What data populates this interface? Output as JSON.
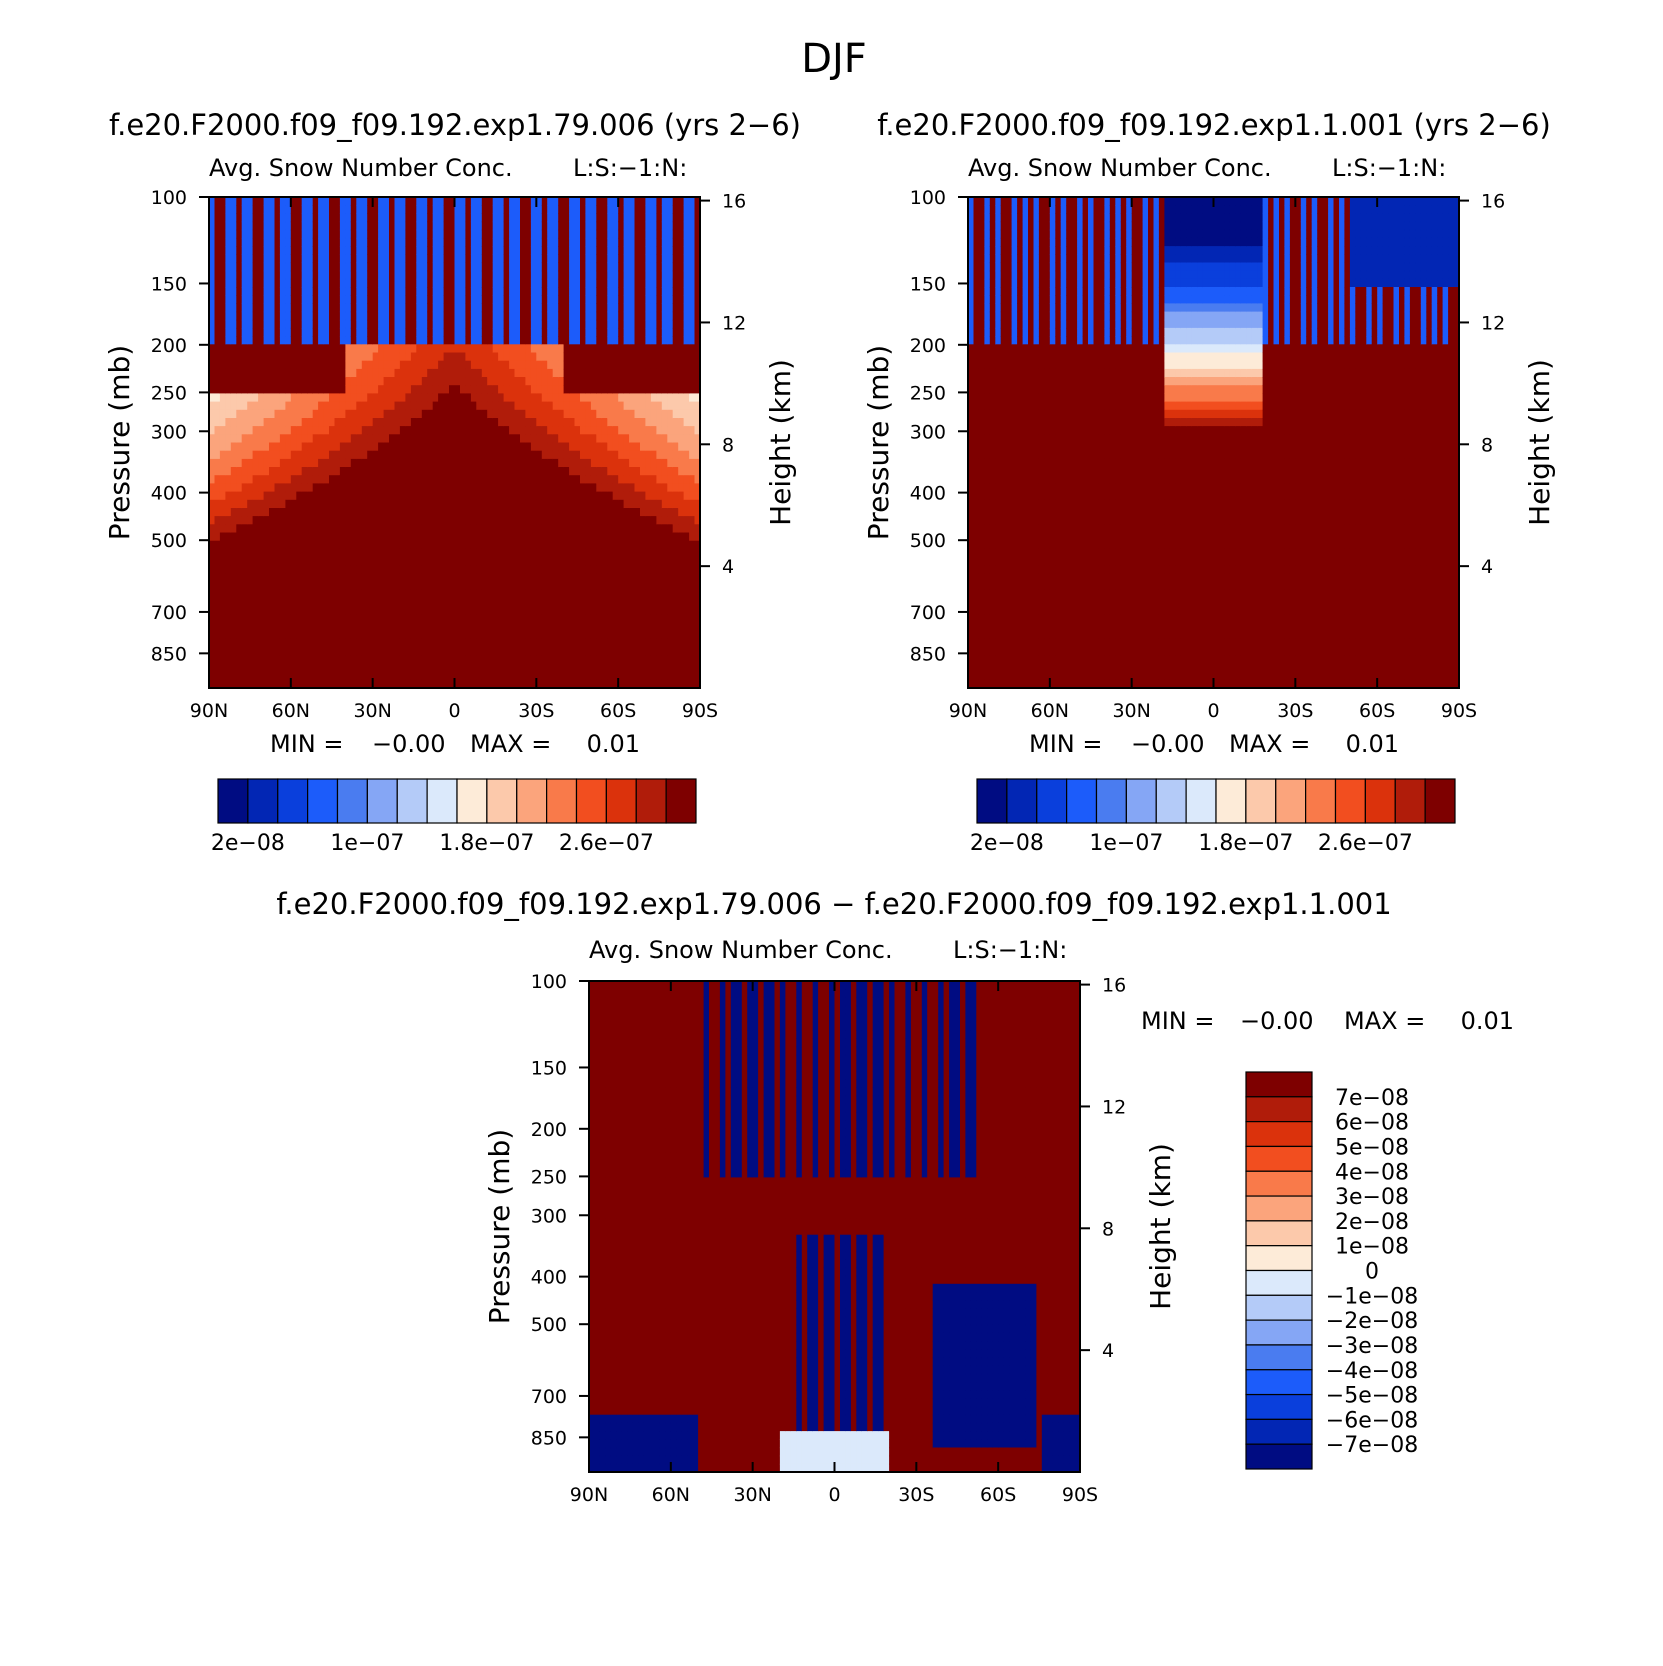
{
  "figure": {
    "title": "DJF"
  },
  "chart_data": [
    {
      "type": "heatmap",
      "case_title": "f.e20.F2000.f09_f09.192.exp1.79.006 (yrs 2−6)",
      "variable_title": "Avg. Snow Number Conc.",
      "level_note": "L:S:−1:N:",
      "ylabel": "Pressure (mb)",
      "ylabel_right": "Height (km)",
      "x_ticks": [
        "90N",
        "60N",
        "30N",
        "0",
        "30S",
        "60S",
        "90S"
      ],
      "y_ticks": [
        "100",
        "150",
        "200",
        "250",
        "300",
        "400",
        "500",
        "700",
        "850"
      ],
      "y_ticks_right": [
        "16",
        "12",
        "8",
        "4"
      ],
      "x_range": [
        90,
        -90
      ],
      "y_range_mb": [
        100,
        1000
      ],
      "y_scale": "log",
      "stats_min_label": "MIN =",
      "stats_min": "−0.00",
      "stats_max_label": "MAX =",
      "stats_max": "0.01",
      "colorbar": {
        "orientation": "horizontal",
        "colors": [
          "#000c82",
          "#0226b4",
          "#0a3fdc",
          "#1c5cfa",
          "#4a7cf0",
          "#85a6f5",
          "#b4cbf8",
          "#dbe9fb",
          "#fdebd8",
          "#fcc9ab",
          "#fba47c",
          "#f97a4a",
          "#f24e1f",
          "#db320c",
          "#b01c0a",
          "#7e0000"
        ],
        "labels": [
          "2e−08",
          "1e−07",
          "1.8e−07",
          "2.6e−07"
        ]
      }
    },
    {
      "type": "heatmap",
      "case_title": "f.e20.F2000.f09_f09.192.exp1.1.001 (yrs 2−6)",
      "variable_title": "Avg. Snow Number Conc.",
      "level_note": "L:S:−1:N:",
      "ylabel": "Pressure (mb)",
      "ylabel_right": "Height (km)",
      "x_ticks": [
        "90N",
        "60N",
        "30N",
        "0",
        "30S",
        "60S",
        "90S"
      ],
      "y_ticks": [
        "100",
        "150",
        "200",
        "250",
        "300",
        "400",
        "500",
        "700",
        "850"
      ],
      "y_ticks_right": [
        "16",
        "12",
        "8",
        "4"
      ],
      "x_range": [
        90,
        -90
      ],
      "y_range_mb": [
        100,
        1000
      ],
      "y_scale": "log",
      "stats_min_label": "MIN =",
      "stats_min": "−0.00",
      "stats_max_label": "MAX =",
      "stats_max": "0.01",
      "colorbar": {
        "orientation": "horizontal",
        "colors": [
          "#000c82",
          "#0226b4",
          "#0a3fdc",
          "#1c5cfa",
          "#4a7cf0",
          "#85a6f5",
          "#b4cbf8",
          "#dbe9fb",
          "#fdebd8",
          "#fcc9ab",
          "#fba47c",
          "#f97a4a",
          "#f24e1f",
          "#db320c",
          "#b01c0a",
          "#7e0000"
        ],
        "labels": [
          "2e−08",
          "1e−07",
          "1.8e−07",
          "2.6e−07"
        ]
      }
    },
    {
      "type": "heatmap",
      "case_title": "f.e20.F2000.f09_f09.192.exp1.79.006 − f.e20.F2000.f09_f09.192.exp1.1.001",
      "variable_title": "Avg. Snow Number Conc.",
      "level_note": "L:S:−1:N:",
      "ylabel": "Pressure (mb)",
      "ylabel_right": "Height (km)",
      "x_ticks": [
        "90N",
        "60N",
        "30N",
        "0",
        "30S",
        "60S",
        "90S"
      ],
      "y_ticks": [
        "100",
        "150",
        "200",
        "250",
        "300",
        "400",
        "500",
        "700",
        "850"
      ],
      "y_ticks_right": [
        "16",
        "12",
        "8",
        "4"
      ],
      "x_range": [
        90,
        -90
      ],
      "y_range_mb": [
        100,
        1000
      ],
      "y_scale": "log",
      "stats_min_label": "MIN =",
      "stats_min": "−0.00",
      "stats_max_label": "MAX =",
      "stats_max": "0.01",
      "colorbar": {
        "orientation": "vertical",
        "colors": [
          "#7e0000",
          "#b01c0a",
          "#db320c",
          "#f24e1f",
          "#f97a4a",
          "#fba47c",
          "#fcc9ab",
          "#fdebd8",
          "#dbe9fb",
          "#b4cbf8",
          "#85a6f5",
          "#4a7cf0",
          "#1c5cfa",
          "#0a3fdc",
          "#0226b4",
          "#000c82"
        ],
        "labels": [
          "7e−08",
          "6e−08",
          "5e−08",
          "4e−08",
          "3e−08",
          "2e−08",
          "1e−08",
          "0",
          "−1e−08",
          "−2e−08",
          "−3e−08",
          "−4e−08",
          "−5e−08",
          "−6e−08",
          "−7e−08"
        ]
      }
    }
  ]
}
